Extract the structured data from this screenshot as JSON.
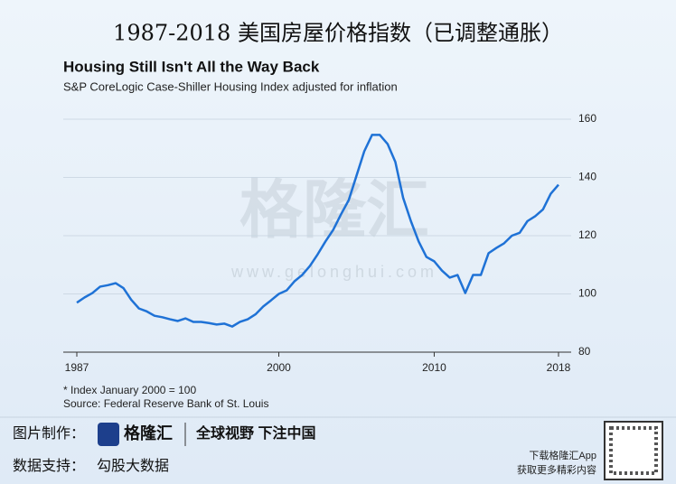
{
  "page_title": "1987-2018 美国房屋价格指数（已调整通胀）",
  "watermark": {
    "name": "格隆汇",
    "url": "www.gelonghui.com"
  },
  "chart_data": {
    "type": "line",
    "title": "Housing Still Isn't All the Way Back",
    "subtitle": "S&P CoreLogic Case-Shiller Housing Index adjusted for inflation",
    "notes": [
      "* Index January 2000 = 100",
      "Source: Federal Reserve Bank of St. Louis"
    ],
    "x": [
      1987,
      1987.5,
      1988,
      1988.5,
      1989,
      1989.5,
      1990,
      1990.5,
      1991,
      1991.5,
      1992,
      1992.5,
      1993,
      1993.5,
      1994,
      1994.5,
      1995,
      1995.5,
      1996,
      1996.5,
      1997,
      1997.5,
      1998,
      1998.5,
      1999,
      1999.5,
      2000,
      2000.5,
      2001,
      2001.5,
      2002,
      2002.5,
      2003,
      2003.5,
      2004,
      2004.5,
      2005,
      2005.5,
      2006,
      2006.5,
      2007,
      2007.5,
      2008,
      2008.5,
      2009,
      2009.5,
      2010,
      2010.5,
      2011,
      2011.5,
      2012,
      2012.5,
      2013,
      2013.5,
      2014,
      2014.5,
      2015,
      2015.5,
      2016,
      2016.5,
      2017,
      2017.5,
      2018
    ],
    "series": [
      {
        "color": "#1f72d6",
        "values": [
          97,
          98.8,
          100.3,
          102.5,
          103,
          103.7,
          102,
          98,
          95,
          94,
          92.5,
          92,
          91.3,
          90.7,
          91.6,
          90.4,
          90.4,
          90,
          89.5,
          89.8,
          88.8,
          90.4,
          91.3,
          93,
          95.7,
          97.8,
          100,
          101.2,
          104.3,
          106.5,
          109.6,
          113.6,
          118,
          122,
          127.3,
          132.2,
          140.6,
          149,
          154.6,
          154.6,
          151.5,
          145.3,
          133,
          125,
          118,
          112.7,
          111.2,
          108,
          105.6,
          106.5,
          100.3,
          106.5,
          106.5,
          114,
          115.8,
          117.4,
          120,
          121,
          125,
          126.7,
          129,
          134.4,
          137.5
        ]
      }
    ],
    "xlim": [
      1987,
      2018
    ],
    "xticks": [
      1987,
      2000,
      2010,
      2018
    ],
    "ylim": [
      80,
      160
    ],
    "yticks": [
      80,
      100,
      120,
      140,
      160
    ],
    "grid": true
  },
  "footer": {
    "made_by_label": "图片制作：",
    "logo": "格隆汇",
    "slogan": "全球视野 下注中国",
    "data_label": "数据支持：",
    "data_source": "勾股大数据",
    "app_line1": "下载格隆汇App",
    "app_line2": "获取更多精彩内容"
  }
}
